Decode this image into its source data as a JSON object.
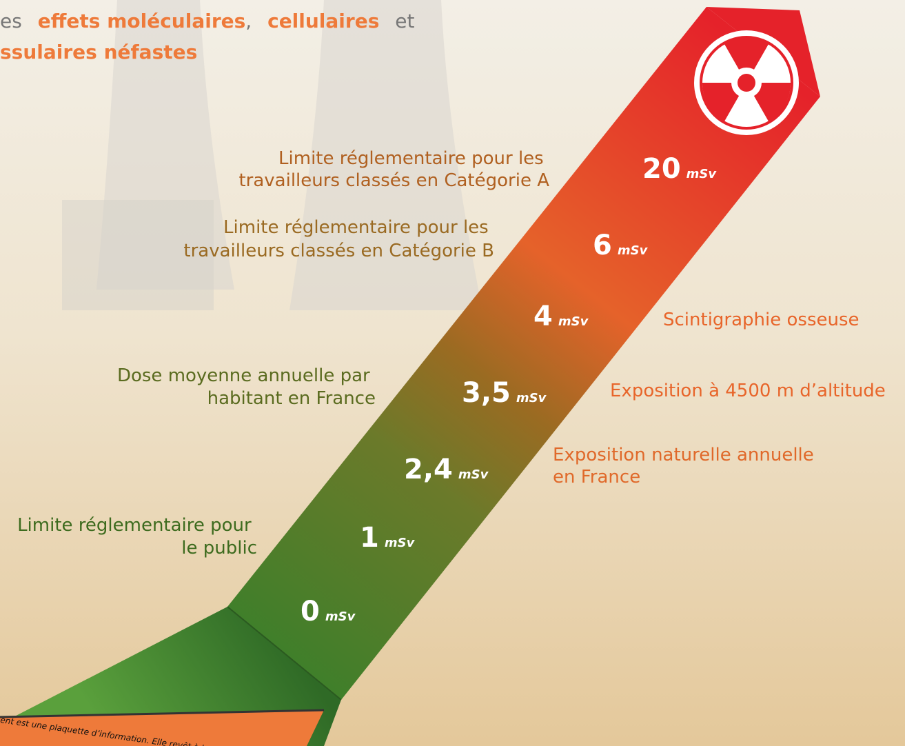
{
  "intro": {
    "line1": [
      "es",
      "effets moléculaires",
      ",",
      "cellulaires",
      "et"
    ],
    "line2": "ssulaires néfastes"
  },
  "levels": [
    {
      "value": "0",
      "unit": "mSv"
    },
    {
      "value": "1",
      "unit": "mSv"
    },
    {
      "value": "2,4",
      "unit": "mSv"
    },
    {
      "value": "3,5",
      "unit": "mSv"
    },
    {
      "value": "4",
      "unit": "mSv"
    },
    {
      "value": "6",
      "unit": "mSv"
    },
    {
      "value": "20",
      "unit": "mSv"
    }
  ],
  "labels": {
    "public": [
      "Limite réglementaire pour",
      "le public"
    ],
    "dose_moyenne": [
      "Dose moyenne annuelle par",
      "habitant en France"
    ],
    "naturelle": [
      "Exposition naturelle annuelle",
      "en France"
    ],
    "altitude": "Exposition à 4500 m d’altitude",
    "scintigraphie": "Scintigraphie osseuse",
    "categorie_b": [
      "Limite réglementaire pour les",
      "travailleurs classés en Catégorie B"
    ],
    "categorie_a": [
      "Limite réglementaire pour les",
      "travailleurs classés en Catégorie A"
    ]
  },
  "footer": "ent est une plaquette d’information. Elle revêt à la fois une fo"
}
